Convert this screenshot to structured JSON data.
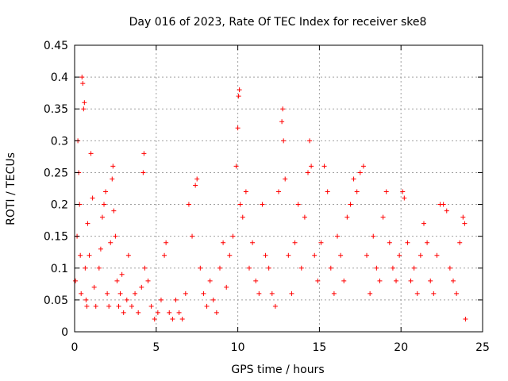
{
  "chart_data": {
    "type": "scatter",
    "title": "Day 016 of 2023, Rate Of TEC Index for receiver ske8",
    "xlabel": "GPS time / hours",
    "ylabel": "ROTI / TECUs",
    "xlim": [
      0,
      25
    ],
    "ylim": [
      0,
      0.45
    ],
    "xticks": [
      "0",
      "5",
      "10",
      "15",
      "20",
      "25"
    ],
    "yticks": [
      "0",
      "0.05",
      "0.1",
      "0.15",
      "0.2",
      "0.25",
      "0.3",
      "0.35",
      "0.4",
      "0.45"
    ],
    "grid": true,
    "marker": "plus",
    "series_color": "#ff0000",
    "points": [
      [
        0.05,
        0.08
      ],
      [
        0.15,
        0.15
      ],
      [
        0.2,
        0.3
      ],
      [
        0.25,
        0.25
      ],
      [
        0.3,
        0.2
      ],
      [
        0.35,
        0.12
      ],
      [
        0.4,
        0.06
      ],
      [
        0.45,
        0.4
      ],
      [
        0.5,
        0.39
      ],
      [
        0.55,
        0.35
      ],
      [
        0.6,
        0.36
      ],
      [
        0.65,
        0.1
      ],
      [
        0.7,
        0.05
      ],
      [
        0.75,
        0.04
      ],
      [
        0.8,
        0.17
      ],
      [
        0.9,
        0.12
      ],
      [
        1.0,
        0.28
      ],
      [
        1.1,
        0.21
      ],
      [
        1.2,
        0.07
      ],
      [
        1.3,
        0.04
      ],
      [
        1.5,
        0.1
      ],
      [
        1.6,
        0.13
      ],
      [
        1.7,
        0.18
      ],
      [
        1.8,
        0.2
      ],
      [
        1.9,
        0.22
      ],
      [
        2.0,
        0.06
      ],
      [
        2.1,
        0.04
      ],
      [
        2.2,
        0.14
      ],
      [
        2.3,
        0.24
      ],
      [
        2.35,
        0.26
      ],
      [
        2.4,
        0.19
      ],
      [
        2.5,
        0.15
      ],
      [
        2.6,
        0.08
      ],
      [
        2.7,
        0.04
      ],
      [
        2.8,
        0.06
      ],
      [
        2.9,
        0.09
      ],
      [
        3.0,
        0.03
      ],
      [
        3.2,
        0.05
      ],
      [
        3.3,
        0.12
      ],
      [
        3.5,
        0.04
      ],
      [
        3.7,
        0.06
      ],
      [
        3.9,
        0.03
      ],
      [
        4.1,
        0.07
      ],
      [
        4.2,
        0.25
      ],
      [
        4.25,
        0.28
      ],
      [
        4.3,
        0.1
      ],
      [
        4.5,
        0.08
      ],
      [
        4.7,
        0.04
      ],
      [
        4.9,
        0.02
      ],
      [
        5.1,
        0.03
      ],
      [
        5.3,
        0.05
      ],
      [
        5.5,
        0.12
      ],
      [
        5.6,
        0.14
      ],
      [
        5.8,
        0.03
      ],
      [
        6.0,
        0.02
      ],
      [
        6.2,
        0.05
      ],
      [
        6.4,
        0.03
      ],
      [
        6.6,
        0.02
      ],
      [
        6.8,
        0.06
      ],
      [
        7.0,
        0.2
      ],
      [
        7.2,
        0.15
      ],
      [
        7.4,
        0.23
      ],
      [
        7.5,
        0.24
      ],
      [
        7.7,
        0.1
      ],
      [
        7.9,
        0.06
      ],
      [
        8.1,
        0.04
      ],
      [
        8.3,
        0.08
      ],
      [
        8.5,
        0.05
      ],
      [
        8.7,
        0.03
      ],
      [
        8.9,
        0.1
      ],
      [
        9.1,
        0.14
      ],
      [
        9.3,
        0.07
      ],
      [
        9.5,
        0.12
      ],
      [
        9.7,
        0.15
      ],
      [
        9.9,
        0.26
      ],
      [
        10.0,
        0.32
      ],
      [
        10.05,
        0.37
      ],
      [
        10.1,
        0.38
      ],
      [
        10.15,
        0.2
      ],
      [
        10.3,
        0.18
      ],
      [
        10.5,
        0.22
      ],
      [
        10.7,
        0.1
      ],
      [
        10.9,
        0.14
      ],
      [
        11.1,
        0.08
      ],
      [
        11.3,
        0.06
      ],
      [
        11.5,
        0.2
      ],
      [
        11.7,
        0.12
      ],
      [
        11.9,
        0.1
      ],
      [
        12.1,
        0.06
      ],
      [
        12.3,
        0.04
      ],
      [
        12.5,
        0.22
      ],
      [
        12.7,
        0.33
      ],
      [
        12.75,
        0.35
      ],
      [
        12.8,
        0.3
      ],
      [
        12.9,
        0.24
      ],
      [
        13.1,
        0.12
      ],
      [
        13.3,
        0.06
      ],
      [
        13.5,
        0.14
      ],
      [
        13.7,
        0.2
      ],
      [
        13.9,
        0.1
      ],
      [
        14.1,
        0.18
      ],
      [
        14.3,
        0.25
      ],
      [
        14.4,
        0.3
      ],
      [
        14.5,
        0.26
      ],
      [
        14.7,
        0.12
      ],
      [
        14.9,
        0.08
      ],
      [
        15.1,
        0.14
      ],
      [
        15.3,
        0.26
      ],
      [
        15.5,
        0.22
      ],
      [
        15.7,
        0.1
      ],
      [
        15.9,
        0.06
      ],
      [
        16.1,
        0.15
      ],
      [
        16.3,
        0.12
      ],
      [
        16.5,
        0.08
      ],
      [
        16.7,
        0.18
      ],
      [
        16.9,
        0.2
      ],
      [
        17.1,
        0.24
      ],
      [
        17.3,
        0.22
      ],
      [
        17.5,
        0.25
      ],
      [
        17.7,
        0.26
      ],
      [
        17.9,
        0.12
      ],
      [
        18.1,
        0.06
      ],
      [
        18.3,
        0.15
      ],
      [
        18.5,
        0.1
      ],
      [
        18.7,
        0.08
      ],
      [
        18.9,
        0.18
      ],
      [
        19.1,
        0.22
      ],
      [
        19.3,
        0.14
      ],
      [
        19.5,
        0.1
      ],
      [
        19.7,
        0.08
      ],
      [
        19.9,
        0.12
      ],
      [
        20.1,
        0.22
      ],
      [
        20.2,
        0.21
      ],
      [
        20.4,
        0.14
      ],
      [
        20.6,
        0.08
      ],
      [
        20.8,
        0.1
      ],
      [
        21.0,
        0.06
      ],
      [
        21.2,
        0.12
      ],
      [
        21.4,
        0.17
      ],
      [
        21.6,
        0.14
      ],
      [
        21.8,
        0.08
      ],
      [
        22.0,
        0.06
      ],
      [
        22.2,
        0.12
      ],
      [
        22.4,
        0.2
      ],
      [
        22.6,
        0.2
      ],
      [
        22.8,
        0.19
      ],
      [
        23.0,
        0.1
      ],
      [
        23.2,
        0.08
      ],
      [
        23.4,
        0.06
      ],
      [
        23.6,
        0.14
      ],
      [
        23.8,
        0.18
      ],
      [
        23.9,
        0.17
      ],
      [
        23.95,
        0.02
      ]
    ]
  }
}
